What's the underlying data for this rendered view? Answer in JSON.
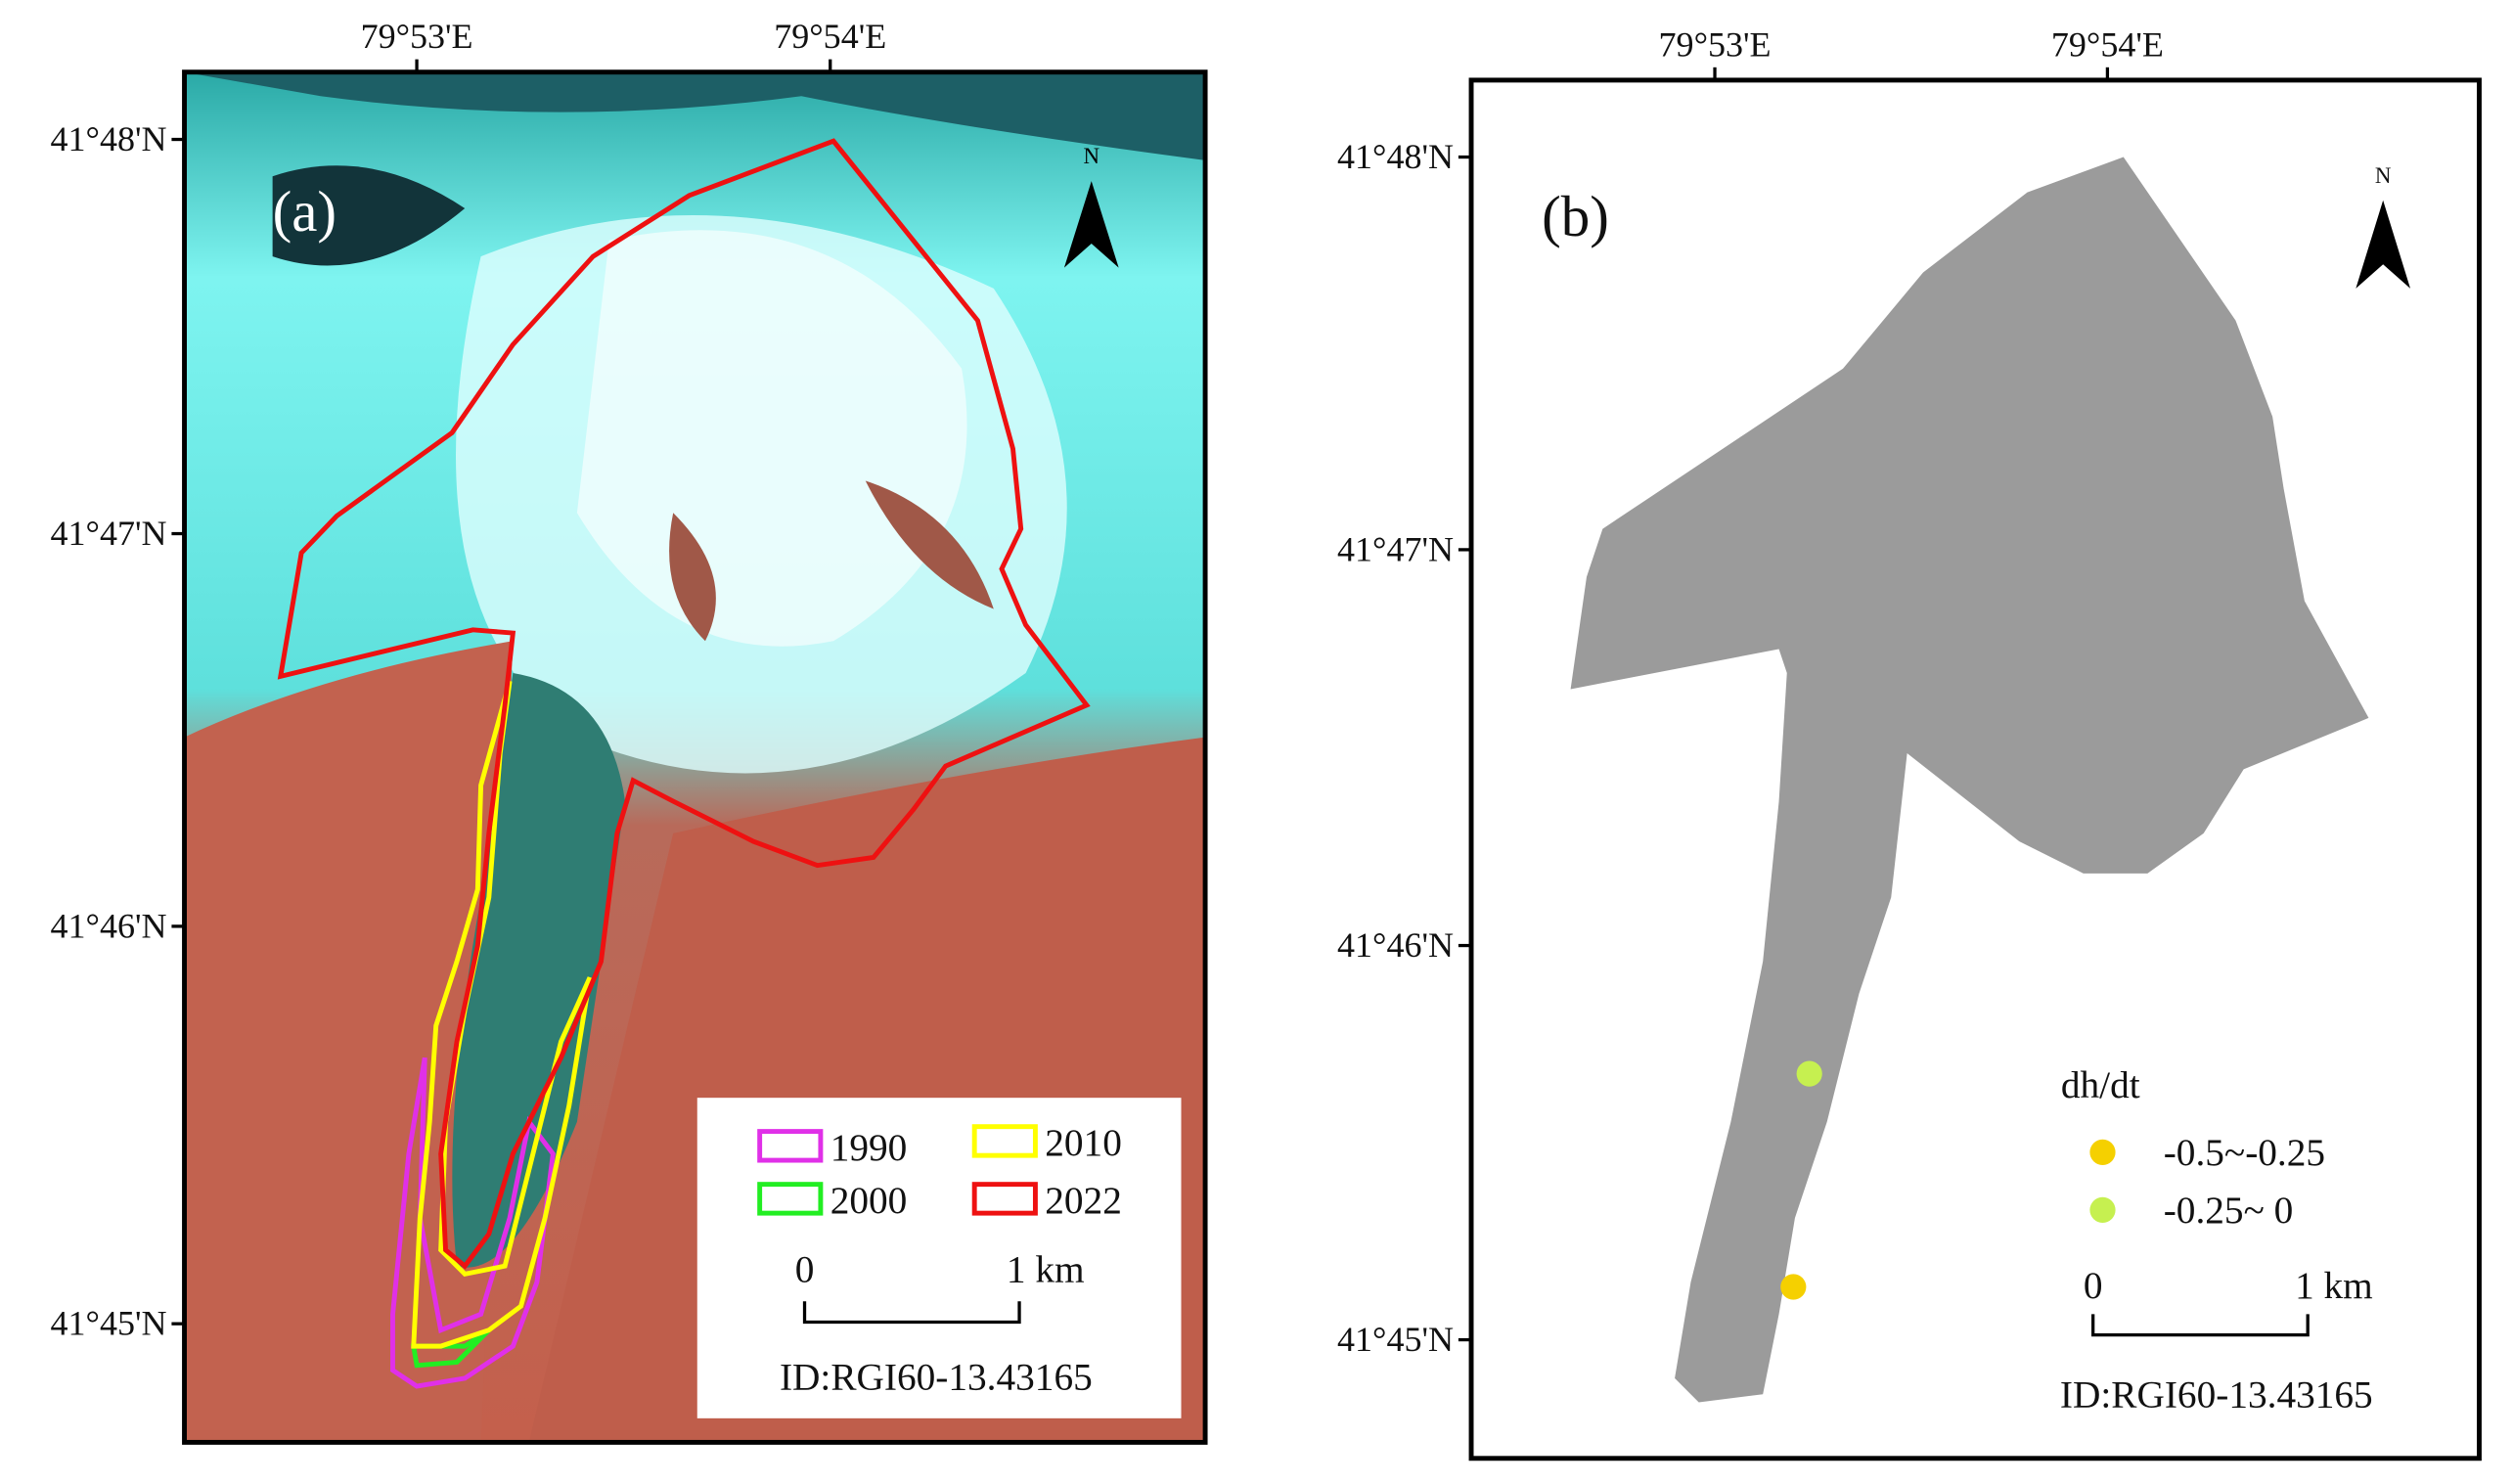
{
  "panels": [
    {
      "label": "(a)",
      "x_labels": [
        "79°53'E",
        "79°54'E"
      ],
      "y_labels": [
        "41°48'N",
        "41°47'N",
        "41°46'N",
        "41°45'N"
      ],
      "north": "N",
      "legend": [
        {
          "name": "1990",
          "color": "#e030e8"
        },
        {
          "name": "2010",
          "color": "#ffff00"
        },
        {
          "name": "2000",
          "color": "#22ee22"
        },
        {
          "name": "2022",
          "color": "#ee1111"
        }
      ],
      "scale": {
        "start": "0",
        "end": "1 km"
      },
      "id": "ID:RGI60-13.43165"
    },
    {
      "label": "(b)",
      "x_labels": [
        "79°53'E",
        "79°54'E"
      ],
      "y_labels": [
        "41°48'N",
        "41°47'N",
        "41°46'N",
        "41°45'N"
      ],
      "north": "N",
      "legend_title": "dh/dt",
      "legend": [
        {
          "name": "-0.5~-0.25",
          "color": "#f5d000"
        },
        {
          "name": "-0.25~ 0",
          "color": "#c6f050"
        }
      ],
      "scale": {
        "start": "0",
        "end": "1 km"
      },
      "id": "ID:RGI60-13.43165"
    }
  ]
}
